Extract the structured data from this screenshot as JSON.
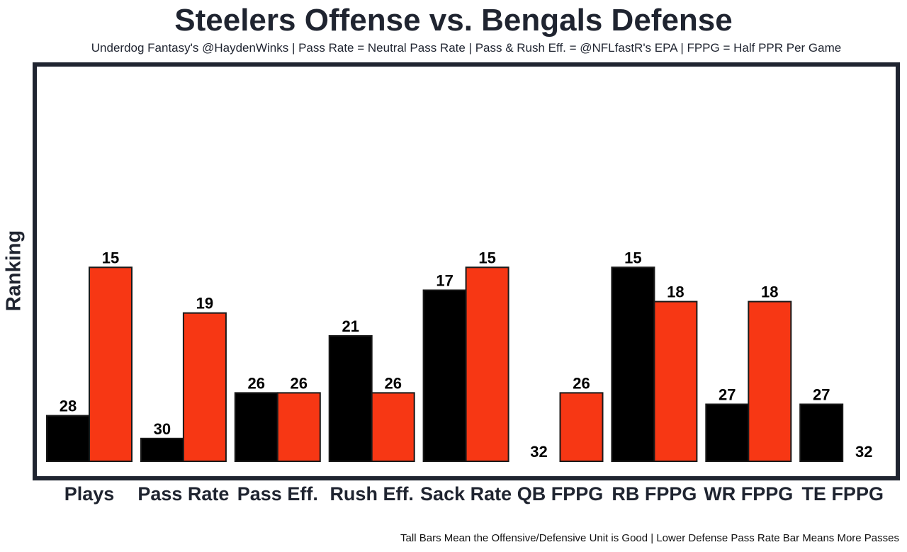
{
  "chart_data": {
    "type": "bar",
    "title": "Steelers Offense vs. Bengals Defense",
    "subtitle": "Underdog Fantasy's @HaydenWinks | Pass Rate = Neutral Pass Rate | Pass & Rush Eff. = @NFLfastR's EPA | FPPG = Half PPR Per Game",
    "ylabel": "Ranking",
    "xlabel": "",
    "footnote": "Tall Bars Mean the Offensive/Defensive Unit is Good | Lower Defense Pass Rate Bar Means More Passes",
    "categories": [
      "Plays",
      "Pass Rate",
      "Pass Eff.",
      "Rush Eff.",
      "Sack Rate",
      "QB  FPPG",
      "RB  FPPG",
      "WR  FPPG",
      "TE  FPPG"
    ],
    "series": [
      {
        "name": "Steelers Offense",
        "color": "#000000",
        "values": [
          28,
          30,
          26,
          21,
          17,
          32,
          15,
          27,
          27
        ]
      },
      {
        "name": "Bengals Defense",
        "color": "#f73714",
        "values": [
          15,
          19,
          26,
          26,
          15,
          26,
          18,
          18,
          32
        ]
      }
    ],
    "yaxis": "rank (1 = tallest, 32 = baseline)",
    "grid": false,
    "legend": "none"
  }
}
